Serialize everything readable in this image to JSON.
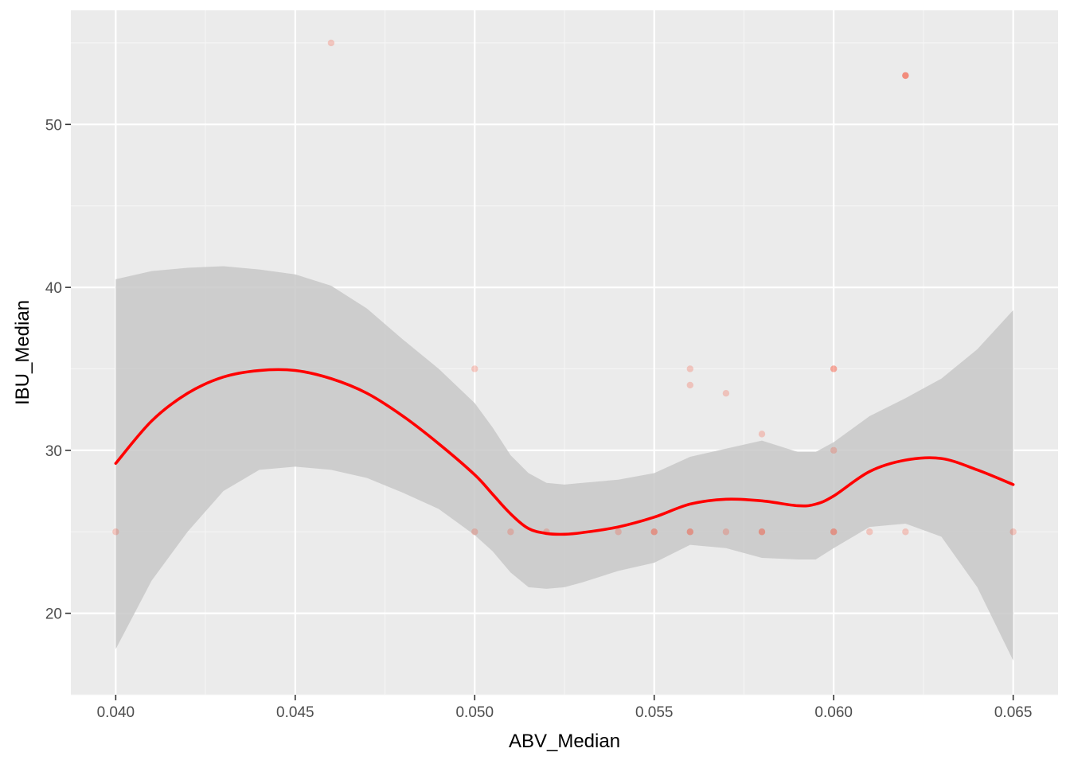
{
  "chart_data": {
    "type": "scatter",
    "title": "",
    "xlabel": "ABV_Median",
    "ylabel": "IBU_Median",
    "xlim": [
      0.03875,
      0.06625
    ],
    "ylim": [
      15.0,
      57.0
    ],
    "x_ticks": [
      0.04,
      0.045,
      0.05,
      0.055,
      0.06,
      0.065
    ],
    "x_tick_labels": [
      "0.040",
      "0.045",
      "0.050",
      "0.055",
      "0.060",
      "0.065"
    ],
    "y_ticks": [
      20,
      30,
      40,
      50
    ],
    "y_tick_labels": [
      "20",
      "30",
      "40",
      "50"
    ],
    "grid": true,
    "legend": "none",
    "colors": {
      "panel_background": "#ebebeb",
      "grid_major": "#ffffff",
      "grid_minor": "#f5f5f5",
      "points": "#f8482a",
      "smooth_line": "#ff0000",
      "confidence_band": "#c8c8c8"
    },
    "points": [
      {
        "x": 0.04,
        "y": 25.0
      },
      {
        "x": 0.046,
        "y": 55.0
      },
      {
        "x": 0.05,
        "y": 35.0
      },
      {
        "x": 0.05,
        "y": 25.0
      },
      {
        "x": 0.051,
        "y": 25.0
      },
      {
        "x": 0.052,
        "y": 25.0
      },
      {
        "x": 0.054,
        "y": 25.0
      },
      {
        "x": 0.055,
        "y": 25.0
      },
      {
        "x": 0.055,
        "y": 25.0
      },
      {
        "x": 0.056,
        "y": 35.0
      },
      {
        "x": 0.056,
        "y": 34.0
      },
      {
        "x": 0.056,
        "y": 25.0
      },
      {
        "x": 0.056,
        "y": 25.0
      },
      {
        "x": 0.057,
        "y": 33.5
      },
      {
        "x": 0.057,
        "y": 25.0
      },
      {
        "x": 0.058,
        "y": 31.0
      },
      {
        "x": 0.058,
        "y": 25.0
      },
      {
        "x": 0.058,
        "y": 25.0
      },
      {
        "x": 0.06,
        "y": 35.0
      },
      {
        "x": 0.06,
        "y": 35.0
      },
      {
        "x": 0.06,
        "y": 30.0
      },
      {
        "x": 0.06,
        "y": 25.0
      },
      {
        "x": 0.06,
        "y": 25.0
      },
      {
        "x": 0.061,
        "y": 25.0
      },
      {
        "x": 0.062,
        "y": 53.0
      },
      {
        "x": 0.062,
        "y": 53.0
      },
      {
        "x": 0.062,
        "y": 53.0
      },
      {
        "x": 0.062,
        "y": 25.0
      },
      {
        "x": 0.065,
        "y": 25.0
      }
    ],
    "smooth": {
      "x": [
        0.04,
        0.041,
        0.042,
        0.043,
        0.044,
        0.045,
        0.046,
        0.047,
        0.048,
        0.049,
        0.05,
        0.0505,
        0.051,
        0.0515,
        0.052,
        0.0525,
        0.053,
        0.054,
        0.055,
        0.056,
        0.057,
        0.058,
        0.059,
        0.0595,
        0.06,
        0.061,
        0.062,
        0.063,
        0.064,
        0.065
      ],
      "y": [
        29.2,
        31.8,
        33.5,
        34.5,
        34.9,
        34.9,
        34.4,
        33.5,
        32.1,
        30.4,
        28.5,
        27.3,
        26.1,
        25.2,
        24.9,
        24.85,
        24.95,
        25.3,
        25.9,
        26.7,
        27.0,
        26.9,
        26.6,
        26.7,
        27.2,
        28.7,
        29.4,
        29.5,
        28.8,
        27.9
      ],
      "lower": [
        17.8,
        22.0,
        25.0,
        27.5,
        28.8,
        29.0,
        28.8,
        28.3,
        27.4,
        26.4,
        24.8,
        23.8,
        22.5,
        21.6,
        21.5,
        21.6,
        21.9,
        22.6,
        23.1,
        24.2,
        24.0,
        23.4,
        23.3,
        23.3,
        24.0,
        25.3,
        25.5,
        24.7,
        21.6,
        17.1
      ],
      "upper": [
        40.5,
        41.0,
        41.2,
        41.3,
        41.1,
        40.8,
        40.1,
        38.7,
        36.8,
        35.0,
        32.9,
        31.4,
        29.7,
        28.6,
        28.0,
        27.9,
        28.0,
        28.2,
        28.6,
        29.6,
        30.1,
        30.6,
        29.9,
        29.9,
        30.5,
        32.1,
        33.2,
        34.4,
        36.2,
        38.6
      ]
    }
  }
}
